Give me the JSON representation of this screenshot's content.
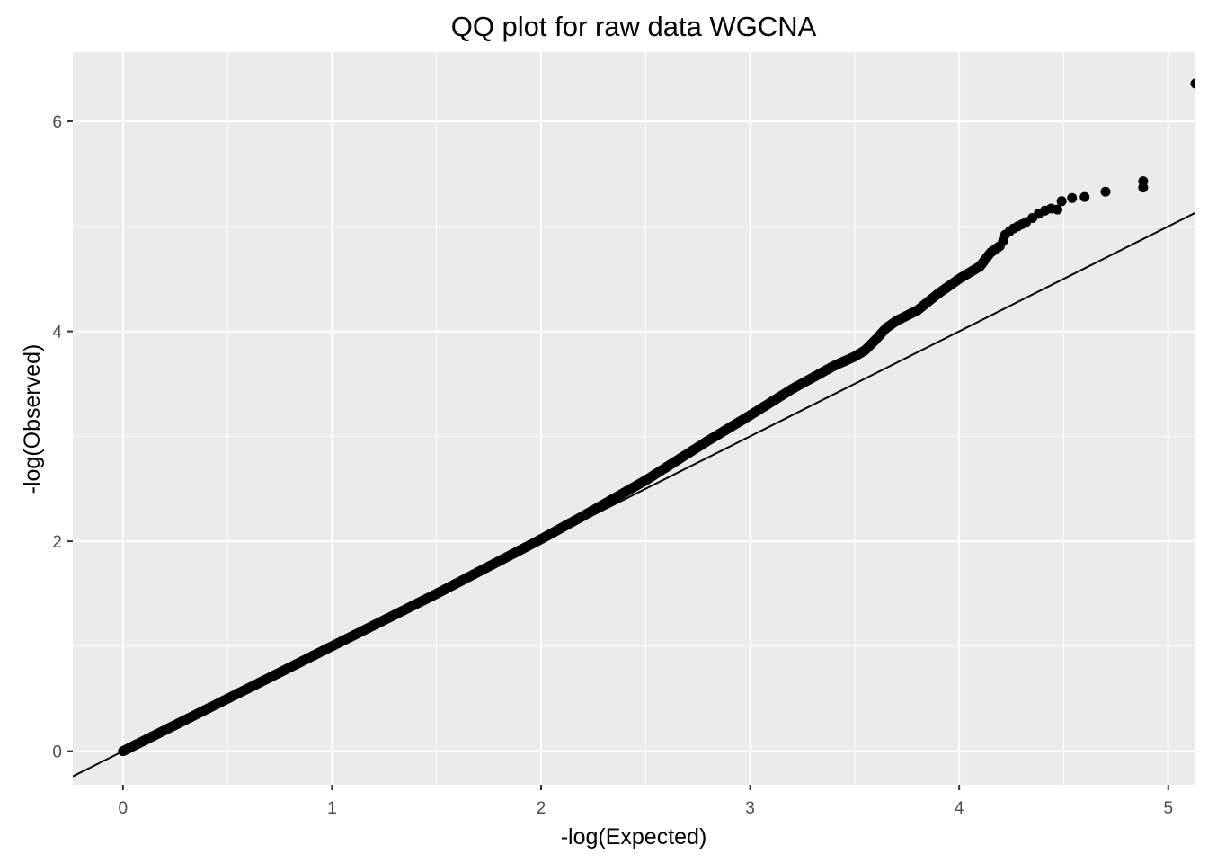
{
  "chart_data": {
    "type": "scatter",
    "title": "QQ plot for raw data WGCNA",
    "xlabel": "-log(Expected)",
    "ylabel": "-log(Observed)",
    "xlim": [
      -0.24,
      5.13
    ],
    "ylim": [
      -0.32,
      6.66
    ],
    "x_ticks": [
      0,
      1,
      2,
      3,
      4,
      5
    ],
    "y_ticks": [
      0,
      2,
      4,
      6
    ],
    "x_tick_labels": [
      "0",
      "1",
      "2",
      "3",
      "4",
      "5"
    ],
    "y_tick_labels": [
      "0",
      "2",
      "4",
      "6"
    ],
    "grid": true,
    "background": "#ebebeb",
    "grid_color": "#ffffff",
    "point_color": "#000000",
    "reference_line": {
      "slope": 1,
      "intercept": 0,
      "color": "#000000"
    },
    "curve": [
      [
        0,
        0
      ],
      [
        0.5,
        0.5
      ],
      [
        1,
        1
      ],
      [
        1.5,
        1.5
      ],
      [
        2,
        2.02
      ],
      [
        2.2,
        2.24
      ],
      [
        2.5,
        2.58
      ],
      [
        2.8,
        2.96
      ],
      [
        3.0,
        3.2
      ],
      [
        3.2,
        3.45
      ],
      [
        3.4,
        3.67
      ],
      [
        3.5,
        3.76
      ],
      [
        3.55,
        3.82
      ],
      [
        3.6,
        3.92
      ],
      [
        3.65,
        4.03
      ],
      [
        3.7,
        4.1
      ],
      [
        3.8,
        4.2
      ],
      [
        3.9,
        4.36
      ],
      [
        4.0,
        4.5
      ],
      [
        4.1,
        4.62
      ],
      [
        4.15,
        4.75
      ],
      [
        4.2,
        4.82
      ]
    ],
    "points": [
      [
        4.21,
        4.86
      ],
      [
        4.22,
        4.92
      ],
      [
        4.24,
        4.95
      ],
      [
        4.26,
        4.98
      ],
      [
        4.28,
        5.0
      ],
      [
        4.3,
        5.02
      ],
      [
        4.32,
        5.04
      ],
      [
        4.35,
        5.08
      ],
      [
        4.38,
        5.12
      ],
      [
        4.41,
        5.15
      ],
      [
        4.44,
        5.17
      ],
      [
        4.47,
        5.16
      ],
      [
        4.49,
        5.24
      ],
      [
        4.54,
        5.27
      ],
      [
        4.6,
        5.28
      ],
      [
        4.7,
        5.33
      ],
      [
        4.88,
        5.37
      ],
      [
        4.88,
        5.43
      ],
      [
        5.13,
        6.36
      ]
    ]
  }
}
